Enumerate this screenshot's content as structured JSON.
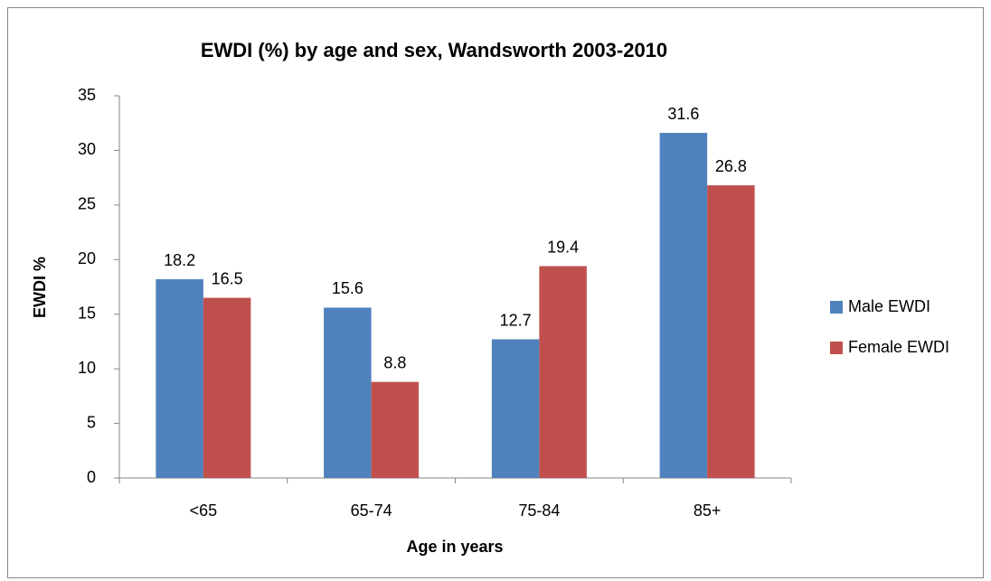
{
  "chart_data": {
    "type": "bar",
    "title": "EWDI (%) by age and sex, Wandsworth 2003-2010",
    "x_label": "Age in years",
    "y_label": "EWDI %",
    "categories": [
      "<65",
      "65-74",
      "75-84",
      "85+"
    ],
    "series": [
      {
        "name": "Male EWDI",
        "color": "#4f81bd",
        "values": [
          18.2,
          15.6,
          12.7,
          31.6
        ]
      },
      {
        "name": "Female EWDI",
        "color": "#c0504d",
        "values": [
          16.5,
          8.8,
          19.4,
          26.8
        ]
      }
    ],
    "ylim": [
      0,
      35
    ],
    "yticks": [
      0,
      5,
      10,
      15,
      20,
      25,
      30,
      35
    ],
    "grid": false,
    "legend": "right",
    "data_labels": true
  }
}
